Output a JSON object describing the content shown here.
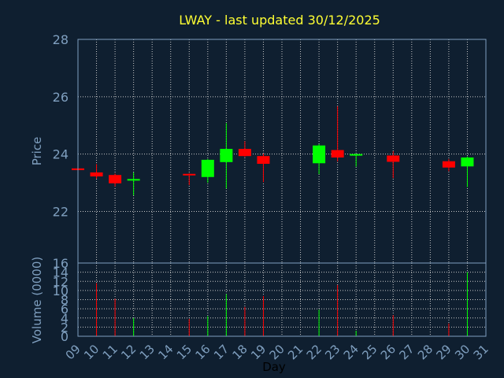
{
  "chart_data": {
    "type": "candlestick",
    "title": "LWAY - last updated 30/12/2025",
    "xlabel": "Day",
    "ylabel": "Price",
    "volume_label": "Volume (0000)",
    "x_ticks": [
      "09",
      "10",
      "11",
      "12",
      "13",
      "14",
      "15",
      "16",
      "17",
      "18",
      "19",
      "20",
      "21",
      "22",
      "23",
      "24",
      "25",
      "26",
      "27",
      "28",
      "29",
      "30",
      "31"
    ],
    "price_ticks": [
      22,
      24,
      26,
      28
    ],
    "price_ylim": [
      20.2,
      28
    ],
    "volume_ticks": [
      0,
      2,
      4,
      6,
      8,
      10,
      12,
      14,
      16
    ],
    "volume_ylim": [
      0,
      16
    ],
    "grid": true,
    "colors": {
      "background": "#0f1f30",
      "up": "#00ff00",
      "down": "#ff0000",
      "title": "#ffff33",
      "axis": "#7f9fbf",
      "grid": "#c8c8c8"
    },
    "candles": [
      {
        "day": "09",
        "open": 23.5,
        "high": 23.5,
        "low": 23.42,
        "close": 23.44,
        "volume": 0
      },
      {
        "day": "10",
        "open": 23.36,
        "high": 23.65,
        "low": 23.14,
        "close": 23.22,
        "volume": 11.6
      },
      {
        "day": "11",
        "open": 23.27,
        "high": 23.32,
        "low": 22.87,
        "close": 22.98,
        "volume": 8.2
      },
      {
        "day": "12",
        "open": 23.09,
        "high": 23.36,
        "low": 22.56,
        "close": 23.13,
        "volume": 4.0
      },
      {
        "day": "15",
        "open": 23.31,
        "high": 23.33,
        "low": 22.92,
        "close": 23.27,
        "volume": 3.8
      },
      {
        "day": "16",
        "open": 23.2,
        "high": 23.83,
        "low": 23.0,
        "close": 23.8,
        "volume": 4.4
      },
      {
        "day": "17",
        "open": 23.72,
        "high": 25.08,
        "low": 22.8,
        "close": 24.18,
        "volume": 9.2
      },
      {
        "day": "18",
        "open": 24.18,
        "high": 24.45,
        "low": 23.9,
        "close": 23.93,
        "volume": 6.4
      },
      {
        "day": "19",
        "open": 23.93,
        "high": 24.02,
        "low": 23.02,
        "close": 23.66,
        "volume": 8.8
      },
      {
        "day": "22",
        "open": 23.68,
        "high": 24.35,
        "low": 23.3,
        "close": 24.3,
        "volume": 5.8
      },
      {
        "day": "23",
        "open": 24.14,
        "high": 25.67,
        "low": 23.74,
        "close": 23.88,
        "volume": 11.2
      },
      {
        "day": "24",
        "open": 23.96,
        "high": 24.01,
        "low": 23.56,
        "close": 24.0,
        "volume": 1.2
      },
      {
        "day": "26",
        "open": 23.95,
        "high": 24.1,
        "low": 23.16,
        "close": 23.73,
        "volume": 4.6
      },
      {
        "day": "29",
        "open": 23.75,
        "high": 23.83,
        "low": 23.4,
        "close": 23.53,
        "volume": 2.8
      },
      {
        "day": "30",
        "open": 23.57,
        "high": 23.92,
        "low": 22.85,
        "close": 23.88,
        "volume": 14.0
      }
    ]
  }
}
